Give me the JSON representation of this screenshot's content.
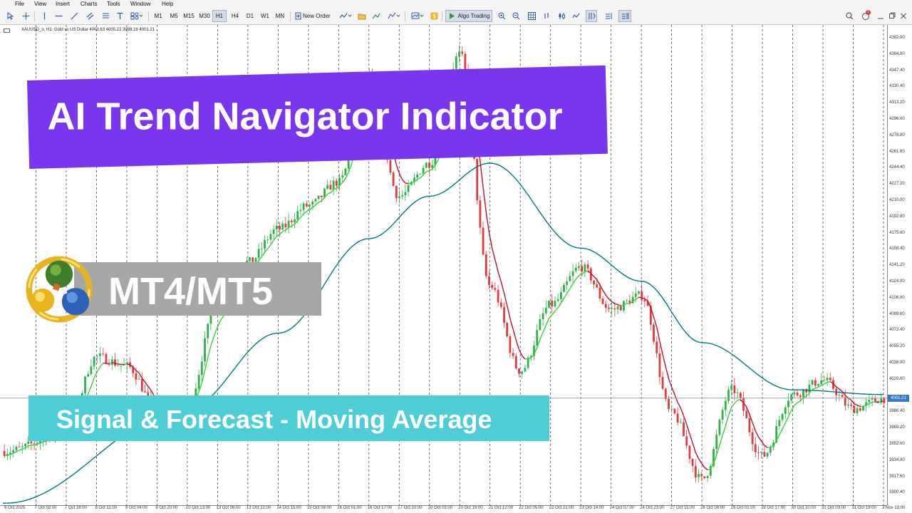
{
  "menu": [
    "File",
    "View",
    "Insert",
    "Charts",
    "Tools",
    "Window",
    "Help"
  ],
  "toolbar": {
    "timeframes": [
      "M1",
      "M5",
      "M15",
      "M30",
      "H1",
      "H4",
      "D1",
      "W1",
      "MN"
    ],
    "active_timeframe": "H1",
    "new_order": "New Order",
    "algo_trading": "Algo Trading",
    "notification_count": "1"
  },
  "chart": {
    "symbol_info": "XAUUSD_o, H1: Gold vs US Dollar  4003.63 4005.22 3998.18 4001.21",
    "current_price": "4001.21",
    "price_labels": [
      "4382.00",
      "4364.80",
      "4347.40",
      "4330.40",
      "4313.20",
      "4296.00",
      "4278.80",
      "4261.60",
      "4244.40",
      "4227.20",
      "4210.00",
      "4192.80",
      "4175.60",
      "4158.40",
      "4141.20",
      "4124.00",
      "4106.80",
      "4089.60",
      "4072.40",
      "4055.20",
      "4038.00",
      "4020.80",
      "3986.40",
      "3969.20",
      "3952.00",
      "3934.80",
      "3917.60",
      "3900.40"
    ],
    "time_labels": [
      "6 Oct 2025",
      "7 Oct 02:00",
      "7 Oct 18:00",
      "8 Oct 11:00",
      "9 Oct 04:00",
      "9 Oct 20:00",
      "10 Oct 13:00",
      "13 Oct 06:00",
      "13 Oct 22:00",
      "14 Oct 15:00",
      "15 Oct 08:00",
      "16 Oct 01:00",
      "16 Oct 17:00",
      "17 Oct 10:00",
      "20 Oct 03:00",
      "20 Oct 19:00",
      "21 Oct 12:00",
      "22 Oct 05:00",
      "22 Oct 21:00",
      "23 Oct 14:00",
      "24 Oct 07:00",
      "24 Oct 23:00",
      "27 Oct 15:00",
      "28 Oct 08:00",
      "29 Oct 01:00",
      "29 Oct 17:00",
      "30 Oct 10:00",
      "31 Oct 03:00",
      "31 Oct 19:00",
      "3 Nov 13:00"
    ],
    "colors": {
      "bull": "#2db24a",
      "bear": "#e03a3a",
      "signal_up": "#36d13b",
      "signal_down": "#c0102c",
      "ma": "#007a80",
      "grid": "#4a4a4a"
    }
  },
  "chart_data": {
    "type": "candlestick",
    "instrument": "XAUUSD_o",
    "timeframe": "H1",
    "ylim": [
      3890,
      4390
    ],
    "open": 4003.63,
    "high": 4005.22,
    "low": 3998.18,
    "close": 4001.21,
    "price_keypoints": [
      {
        "t": "6 Oct 2025",
        "price": 3945
      },
      {
        "t": "7 Oct 18:00",
        "price": 3965
      },
      {
        "t": "8 Oct 11:00",
        "price": 4045
      },
      {
        "t": "9 Oct 04:00",
        "price": 4035
      },
      {
        "t": "9 Oct 20:00",
        "price": 3990
      },
      {
        "t": "10 Oct 13:00",
        "price": 3995
      },
      {
        "t": "13 Oct 06:00",
        "price": 4100
      },
      {
        "t": "13 Oct 22:00",
        "price": 4145
      },
      {
        "t": "14 Oct 15:00",
        "price": 4180
      },
      {
        "t": "15 Oct 08:00",
        "price": 4205
      },
      {
        "t": "16 Oct 01:00",
        "price": 4230
      },
      {
        "t": "16 Oct 17:00",
        "price": 4340
      },
      {
        "t": "17 Oct 10:00",
        "price": 4215
      },
      {
        "t": "20 Oct 03:00",
        "price": 4250
      },
      {
        "t": "20 Oct 19:00",
        "price": 4365
      },
      {
        "t": "21 Oct 12:00",
        "price": 4120
      },
      {
        "t": "22 Oct 05:00",
        "price": 4030
      },
      {
        "t": "22 Oct 21:00",
        "price": 4100
      },
      {
        "t": "23 Oct 14:00",
        "price": 4140
      },
      {
        "t": "24 Oct 07:00",
        "price": 4095
      },
      {
        "t": "24 Oct 23:00",
        "price": 4110
      },
      {
        "t": "27 Oct 15:00",
        "price": 3985
      },
      {
        "t": "28 Oct 08:00",
        "price": 3915
      },
      {
        "t": "29 Oct 01:00",
        "price": 4010
      },
      {
        "t": "29 Oct 17:00",
        "price": 3940
      },
      {
        "t": "30 Oct 10:00",
        "price": 4005
      },
      {
        "t": "31 Oct 03:00",
        "price": 4020
      },
      {
        "t": "31 Oct 19:00",
        "price": 3990
      },
      {
        "t": "3 Nov 13:00",
        "price": 4001
      }
    ],
    "moving_average_keypoints": [
      {
        "t": "6 Oct 2025",
        "price": 3890
      },
      {
        "t": "10 Oct 13:00",
        "price": 3990
      },
      {
        "t": "14 Oct 15:00",
        "price": 4070
      },
      {
        "t": "16 Oct 17:00",
        "price": 4170
      },
      {
        "t": "20 Oct 03:00",
        "price": 4215
      },
      {
        "t": "21 Oct 12:00",
        "price": 4250
      },
      {
        "t": "23 Oct 14:00",
        "price": 4160
      },
      {
        "t": "24 Oct 23:00",
        "price": 4125
      },
      {
        "t": "28 Oct 08:00",
        "price": 4060
      },
      {
        "t": "30 Oct 10:00",
        "price": 4010
      },
      {
        "t": "3 Nov 13:00",
        "price": 4005
      }
    ]
  },
  "banners": {
    "title": "AI Trend Navigator Indicator",
    "platform": "MT4/MT5",
    "signal": "Signal & Forecast - Moving Average"
  }
}
